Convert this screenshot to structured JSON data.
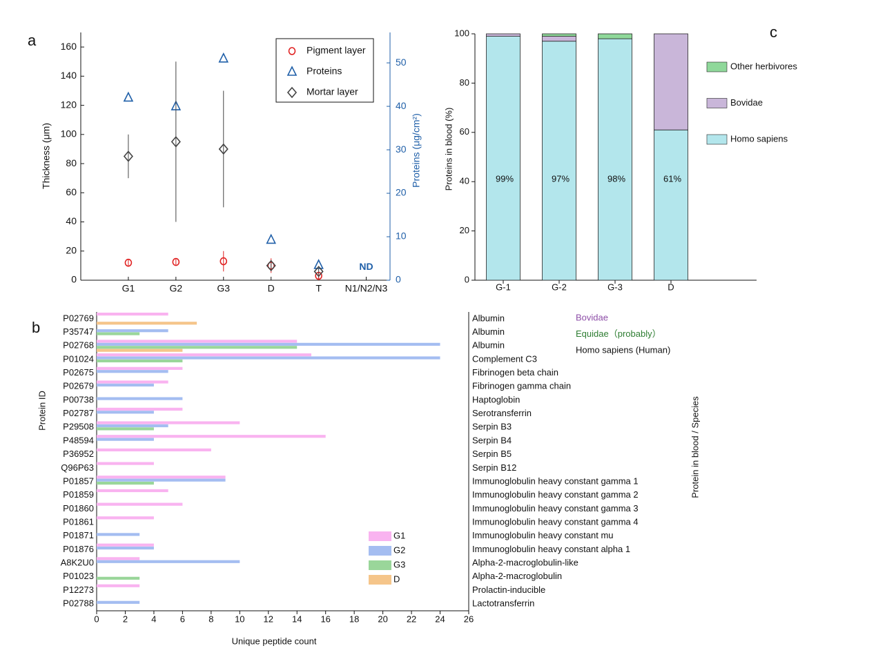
{
  "chart_data": [
    {
      "type": "scatter",
      "panel_label": "a",
      "categories": [
        "G1",
        "G2",
        "G3",
        "D",
        "T",
        "N1/N2/N3"
      ],
      "ylabel": "Thickness (μm)",
      "y2label": "Proteins (μg/cm²)",
      "ylim": [
        0,
        170
      ],
      "yticks": [
        0,
        20,
        40,
        60,
        80,
        100,
        120,
        140,
        160
      ],
      "y2lim": [
        0,
        57
      ],
      "y2ticks": [
        0,
        10,
        20,
        30,
        40,
        50
      ],
      "annotation": "ND",
      "series": [
        {
          "name": "Pigment layer",
          "color": "#e02020",
          "marker": "circle",
          "values": [
            12,
            12.5,
            13,
            10,
            3,
            null
          ],
          "errors": [
            2,
            2,
            7,
            5,
            3,
            null
          ]
        },
        {
          "name": "Proteins",
          "color": "#1f5fa8",
          "marker": "triangle",
          "axis": "y2",
          "values": [
            42,
            40,
            51,
            9.3,
            3.5,
            null
          ]
        },
        {
          "name": "Mortar layer",
          "color": "#444444",
          "marker": "diamond",
          "values": [
            85,
            95,
            90,
            10,
            6,
            null
          ],
          "errors": [
            15,
            55,
            40,
            2,
            2,
            null
          ]
        }
      ]
    },
    {
      "type": "stacked_bar",
      "panel_label": "c",
      "categories": [
        "G-1",
        "G-2",
        "G-3",
        "D"
      ],
      "ylabel": "Proteins in blood (%)",
      "ylim": [
        0,
        100
      ],
      "yticks": [
        0,
        20,
        40,
        60,
        80,
        100
      ],
      "series": [
        {
          "name": "Homo sapiens",
          "color": "#b3e6ec",
          "values": [
            99,
            97,
            98,
            61
          ],
          "value_labels": [
            "99%",
            "97%",
            "98%",
            "61%"
          ]
        },
        {
          "name": "Bovidae",
          "color": "#c9b6d9",
          "values": [
            1,
            2,
            0,
            39
          ]
        },
        {
          "name": "Other herbivores",
          "color": "#8fd89a",
          "values": [
            0,
            1,
            2,
            0
          ]
        }
      ]
    },
    {
      "type": "hbar",
      "panel_label": "b",
      "categories": [
        "P02769",
        "P35747",
        "P02768",
        "P01024",
        "P02675",
        "P02679",
        "P00738",
        "P02787",
        "P29508",
        "P48594",
        "P36952",
        "Q96P63",
        "P01857",
        "P01859",
        "P01860",
        "P01861",
        "P01871",
        "P01876",
        "A8K2U0",
        "P01023",
        "P12273",
        "P02788"
      ],
      "protein_names": [
        "Albumin",
        "Albumin",
        "Albumin",
        "Complement C3",
        "Fibrinogen beta chain",
        "Fibrinogen gamma chain",
        "Haptoglobin",
        "Serotransferrin",
        "Serpin B3",
        "Serpin B4",
        "Serpin B5",
        "Serpin B12",
        "Immunoglobulin heavy constant gamma 1",
        "Immunoglobulin heavy constant gamma 2",
        "Immunoglobulin heavy constant gamma 3",
        "Immunoglobulin heavy constant gamma 4",
        "Immunoglobulin heavy constant mu",
        "Immunoglobulin heavy constant alpha 1",
        "Alpha-2-macroglobulin-like",
        "Alpha-2-macroglobulin",
        "Prolactin-inducible",
        "Lactotransferrin"
      ],
      "xlabel": "Unique peptide count",
      "ylabel": "Protein ID",
      "y2label": "Protein in blood / Species",
      "xlim": [
        0,
        26
      ],
      "xticks": [
        0,
        2,
        4,
        6,
        8,
        10,
        12,
        14,
        16,
        18,
        20,
        22,
        24,
        26
      ],
      "species": [
        {
          "name": "Bovidae",
          "color": "#8e4fa8"
        },
        {
          "name": "Equidae（probably）",
          "color": "#2e7d32"
        },
        {
          "name": "Homo sapiens (Human)",
          "color": "#111111"
        }
      ],
      "series": [
        {
          "name": "G1",
          "color": "#f9b3f0",
          "values": [
            5,
            null,
            14,
            15,
            6,
            5,
            null,
            6,
            10,
            16,
            8,
            4,
            9,
            5,
            6,
            4,
            null,
            4,
            3,
            null,
            3,
            null
          ]
        },
        {
          "name": "G2",
          "color": "#a4bdf1",
          "values": [
            null,
            5,
            24,
            24,
            5,
            4,
            6,
            4,
            5,
            4,
            null,
            null,
            9,
            null,
            null,
            null,
            3,
            4,
            10,
            null,
            null,
            3
          ]
        },
        {
          "name": "G3",
          "color": "#9ad69a",
          "values": [
            null,
            3,
            14,
            6,
            null,
            null,
            null,
            null,
            4,
            null,
            null,
            null,
            4,
            null,
            null,
            null,
            null,
            null,
            null,
            3,
            null,
            null
          ]
        },
        {
          "name": "D",
          "color": "#f5c58a",
          "values": [
            7,
            null,
            6,
            null,
            null,
            null,
            null,
            null,
            null,
            null,
            null,
            null,
            null,
            null,
            null,
            null,
            null,
            null,
            null,
            null,
            null,
            null
          ]
        }
      ]
    }
  ]
}
